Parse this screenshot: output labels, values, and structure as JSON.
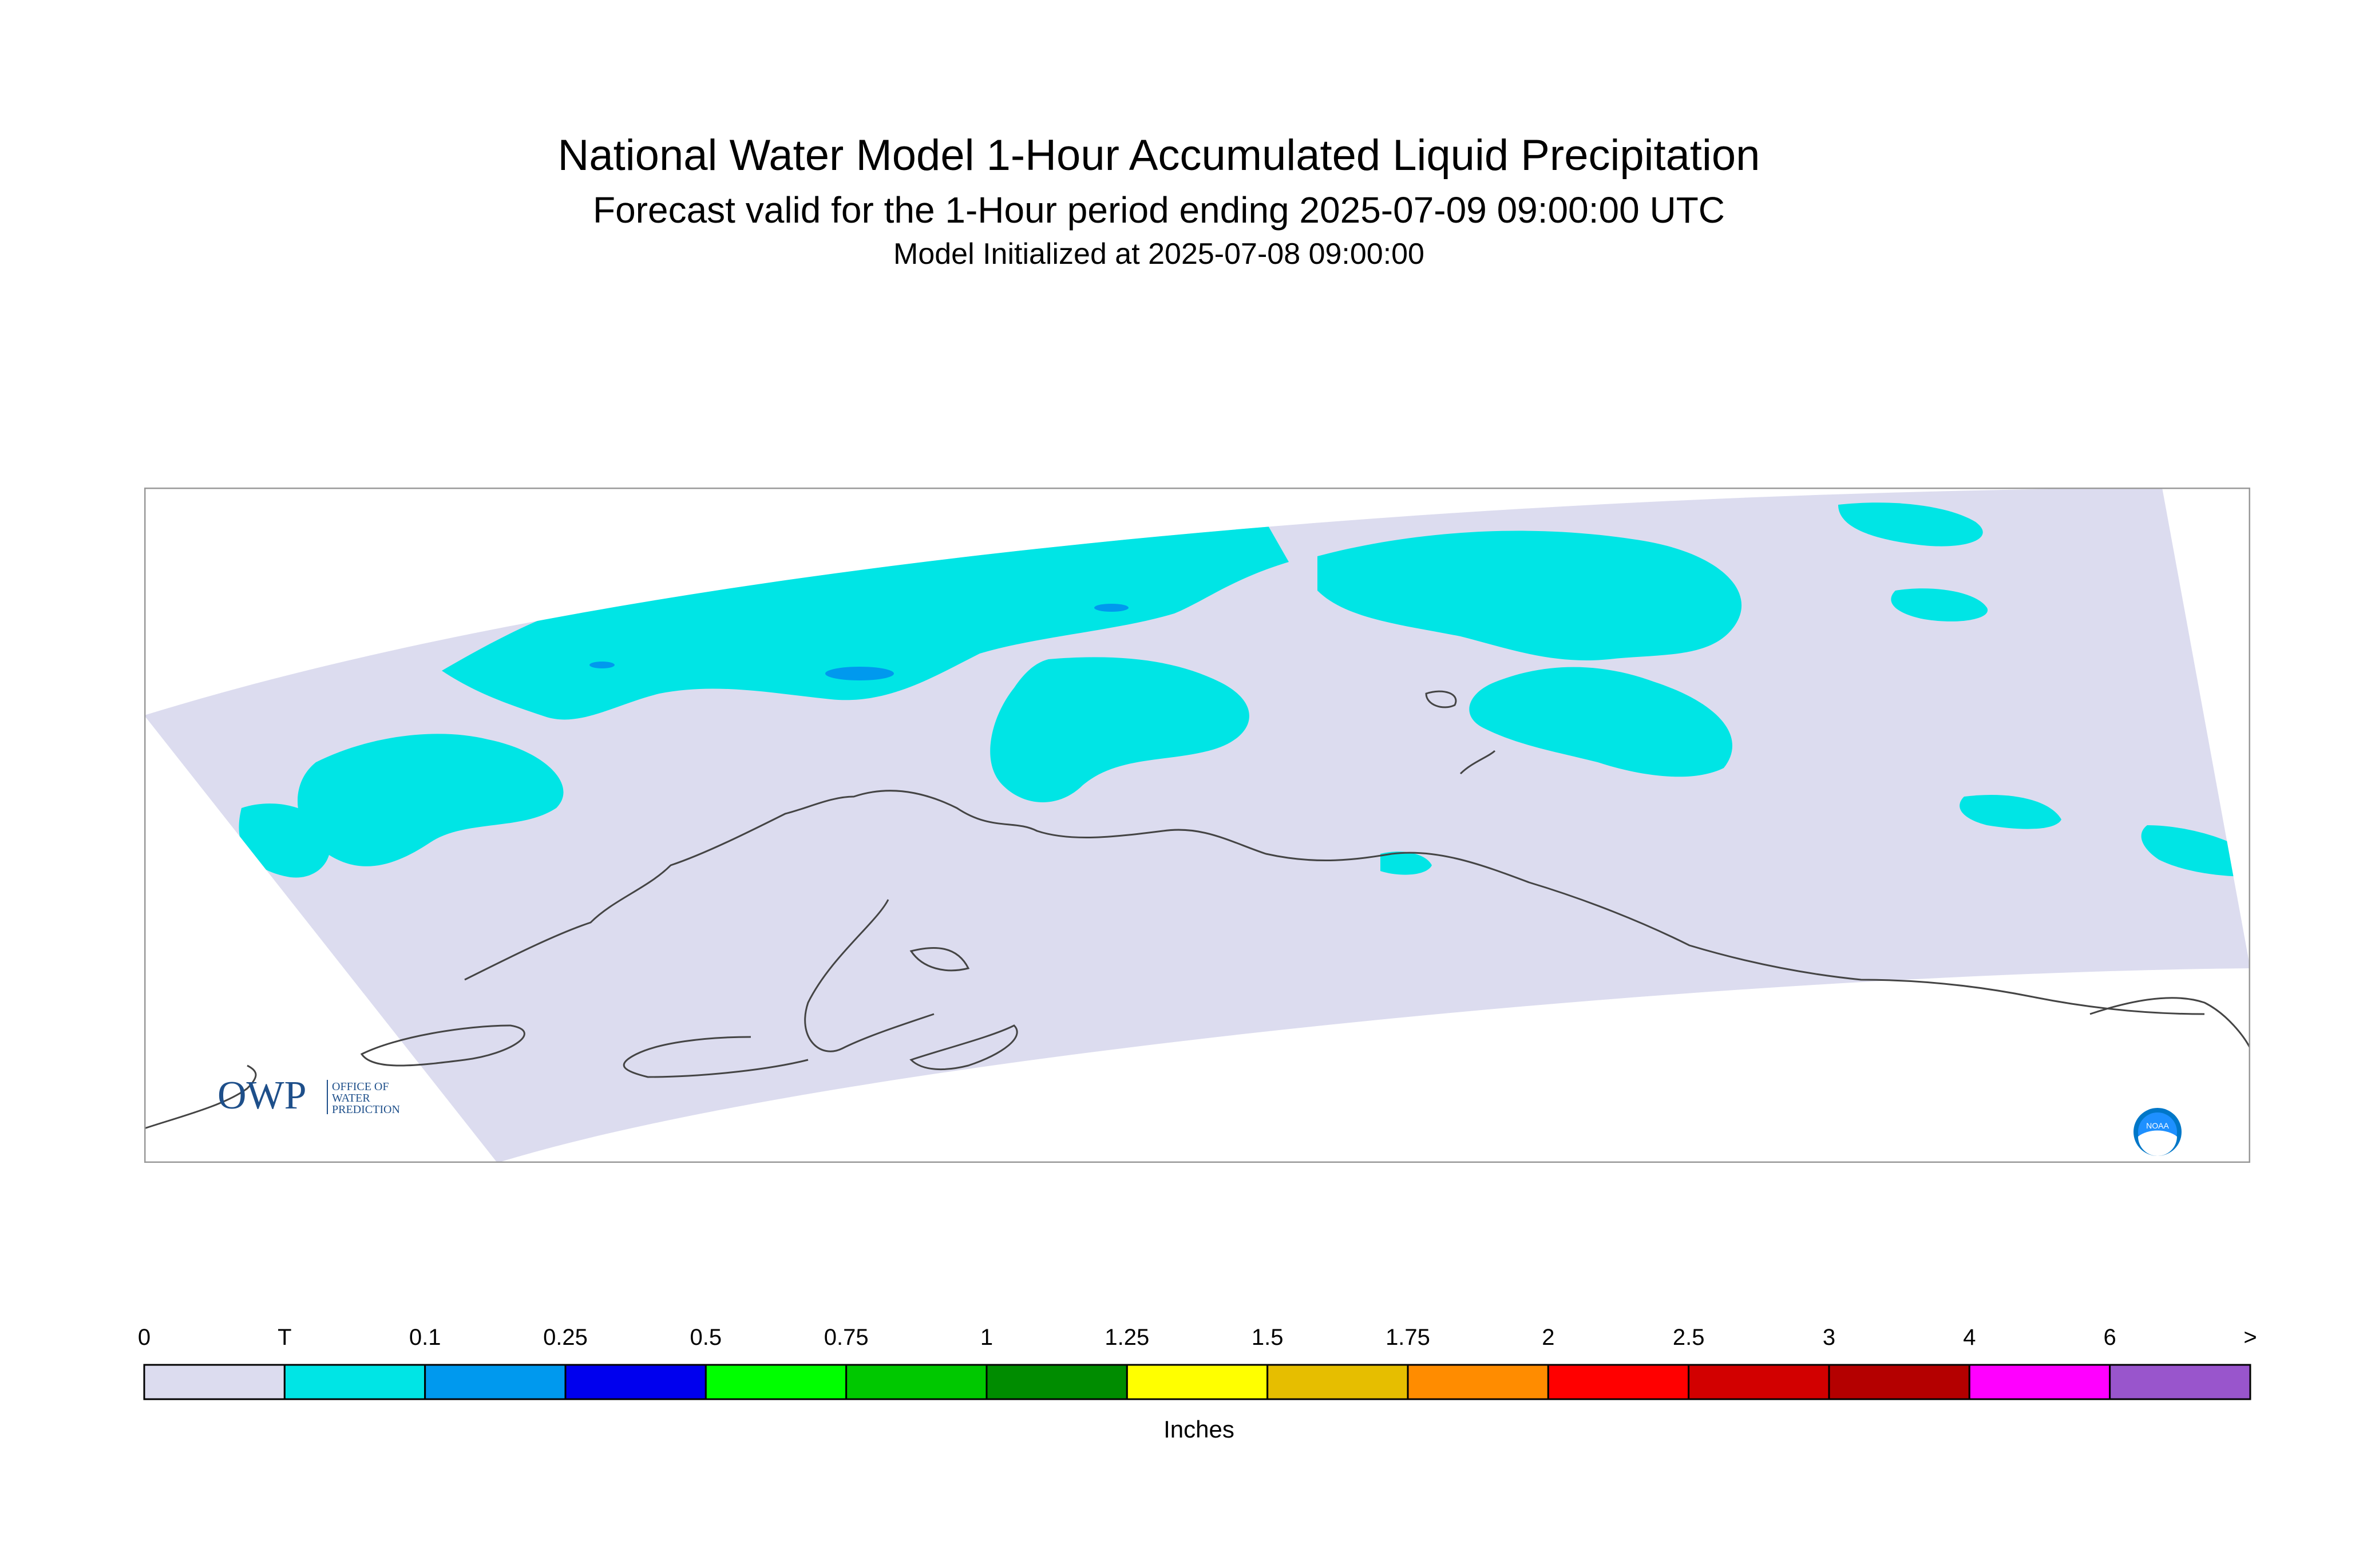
{
  "header": {
    "title": "National Water Model 1-Hour Accumulated Liquid Precipitation",
    "subtitle": "Forecast valid for the 1-Hour period ending 2025-07-09 09:00:00 UTC",
    "init": "Model Initialized at 2025-07-08 09:00:00"
  },
  "logos": {
    "owp_main": "OWP",
    "owp_line1": "OFFICE OF",
    "owp_line2": "WATER",
    "owp_line3": "PREDICTION",
    "noaa": "NOAA"
  },
  "colors": {
    "background_no_precip": "#dcdcef",
    "trace": "#00e5e5",
    "light_blue": "#0099ee",
    "coastline": "#444444"
  },
  "legend": {
    "units": "Inches",
    "labels": [
      "0",
      "T",
      "0.1",
      "0.25",
      "0.5",
      "0.75",
      "1",
      "1.25",
      "1.5",
      "1.75",
      "2",
      "2.5",
      "3",
      "4",
      "6",
      ">"
    ],
    "colors": [
      "#dcdcef",
      "#00e5e5",
      "#0099ee",
      "#0000ee",
      "#00ff00",
      "#00c800",
      "#008c00",
      "#ffff00",
      "#e6be00",
      "#ff8c00",
      "#ff0000",
      "#d20000",
      "#b40000",
      "#ff00ff",
      "#9955cc"
    ]
  }
}
